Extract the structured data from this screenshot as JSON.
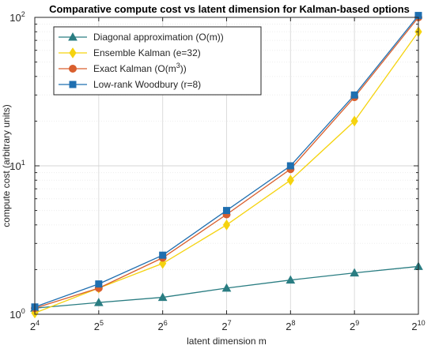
{
  "chart_data": {
    "type": "line",
    "title": "Comparative compute cost vs latent dimension for Kalman-based options",
    "xlabel": "latent dimension m",
    "ylabel": "compute cost (arbitrary units)",
    "xscale": "log2",
    "yscale": "log10",
    "x": [
      16,
      32,
      64,
      128,
      256,
      512,
      1024
    ],
    "xtick_labels": [
      {
        "base": "2",
        "exp": "4"
      },
      {
        "base": "2",
        "exp": "5"
      },
      {
        "base": "2",
        "exp": "6"
      },
      {
        "base": "2",
        "exp": "7"
      },
      {
        "base": "2",
        "exp": "8"
      },
      {
        "base": "2",
        "exp": "9"
      },
      {
        "base": "2",
        "exp": "10"
      }
    ],
    "ytick_labels": [
      {
        "base": "10",
        "exp": "0",
        "value": 1
      },
      {
        "base": "10",
        "exp": "1",
        "value": 10
      },
      {
        "base": "10",
        "exp": "2",
        "value": 100
      }
    ],
    "xlim": [
      16,
      1024
    ],
    "ylim": [
      1,
      100
    ],
    "grid": true,
    "legend_position": "top-left",
    "series": [
      {
        "name": "Diagonal approximation (O(m))",
        "name_parts": [
          {
            "text": "Diagonal approximation (O(m))"
          }
        ],
        "color": "#2a7d82",
        "marker": "triangle",
        "values": [
          1.1,
          1.2,
          1.3,
          1.5,
          1.7,
          1.9,
          2.1
        ]
      },
      {
        "name": "Ensemble Kalman (e=32)",
        "name_parts": [
          {
            "text": "Ensemble Kalman (e=32)"
          }
        ],
        "color": "#f5d30f",
        "marker": "diamond",
        "values": [
          1.02,
          1.5,
          2.2,
          4.0,
          8.0,
          20.0,
          80.0
        ]
      },
      {
        "name": "Exact Kalman (O(m3))",
        "name_parts": [
          {
            "text": "Exact Kalman (O(m"
          },
          {
            "text": "3",
            "sup": true
          },
          {
            "text": "))"
          }
        ],
        "color": "#d95f2e",
        "marker": "circle",
        "values": [
          1.1,
          1.5,
          2.4,
          4.7,
          9.5,
          29.0,
          100.0
        ]
      },
      {
        "name": "Low-rank Woodbury (r=8)",
        "name_parts": [
          {
            "text": "Low-rank Woodbury (r=8)"
          }
        ],
        "color": "#1f6fb0",
        "marker": "square",
        "values": [
          1.12,
          1.6,
          2.5,
          5.0,
          10.0,
          30.0,
          103.0
        ]
      }
    ]
  }
}
